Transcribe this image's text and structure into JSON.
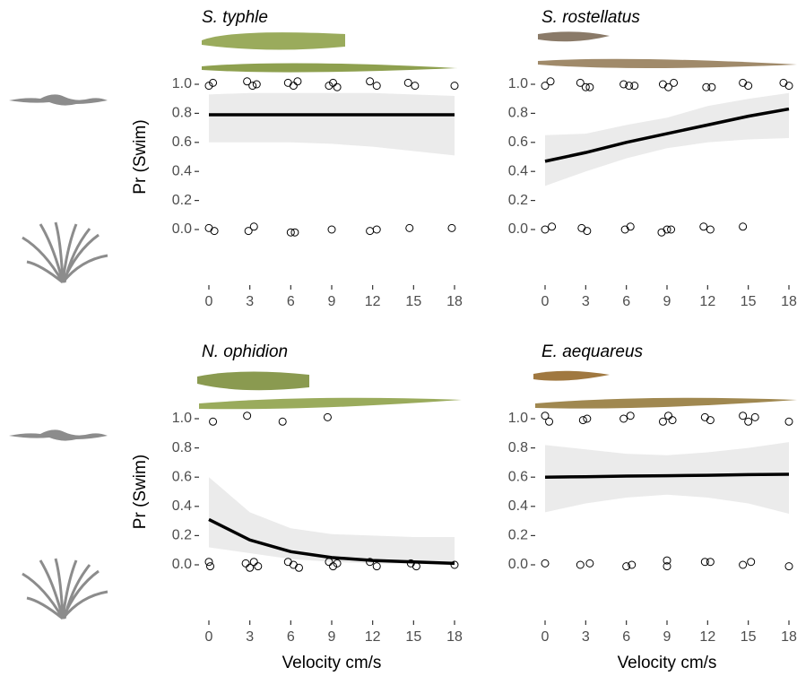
{
  "chart_data": [
    {
      "type": "logistic",
      "title": "S. typhle",
      "ylabel": "Pr (Swim)",
      "xlim": [
        0,
        18
      ],
      "ylim": [
        0,
        1
      ],
      "xticks": [
        0,
        3,
        6,
        9,
        12,
        15,
        18
      ],
      "yticks": [
        {
          "value": 0,
          "label": "0.0"
        },
        {
          "value": 0.2,
          "label": "0.2"
        },
        {
          "value": 0.4,
          "label": "0.4"
        },
        {
          "value": 0.6,
          "label": "0.6"
        },
        {
          "value": 0.8,
          "label": "0.8"
        },
        {
          "value": 1,
          "label": "1.0"
        }
      ],
      "line_color": "#000000",
      "ribbon_color": "#ebebeb",
      "curve": {
        "x": [
          0,
          3,
          6,
          9,
          12,
          15,
          18
        ],
        "fit": [
          0.79,
          0.79,
          0.79,
          0.79,
          0.79,
          0.79,
          0.79
        ],
        "lower": [
          0.6,
          0.6,
          0.6,
          0.59,
          0.57,
          0.54,
          0.51
        ],
        "upper": [
          0.93,
          0.94,
          0.94,
          0.94,
          0.94,
          0.93,
          0.92
        ]
      },
      "points": {
        "x": [
          0,
          0.3,
          2.8,
          3.2,
          3.5,
          5.8,
          6.2,
          6.5,
          8.8,
          9.1,
          9.4,
          11.8,
          12.3,
          14.6,
          15.1,
          18,
          0,
          0.4,
          2.9,
          3.3,
          6,
          6.3,
          9,
          11.8,
          12.3,
          14.7,
          17.8
        ],
        "y": [
          0.99,
          1.01,
          1.02,
          0.99,
          1.0,
          1.01,
          0.99,
          1.02,
          0.99,
          1.01,
          0.98,
          1.02,
          0.99,
          1.01,
          0.99,
          0.99,
          0.01,
          -0.01,
          -0.01,
          0.02,
          -0.02,
          -0.02,
          0.0,
          -0.01,
          0.0,
          0.01,
          0.01
        ]
      }
    },
    {
      "type": "logistic",
      "title": "S. rostellatus",
      "xlim": [
        0,
        18
      ],
      "ylim": [
        0,
        1
      ],
      "xticks": [
        0,
        3,
        6,
        9,
        12,
        15,
        18
      ],
      "yticks": [
        {
          "value": 0,
          "label": "0.0"
        },
        {
          "value": 0.2,
          "label": "0.2"
        },
        {
          "value": 0.4,
          "label": "0.4"
        },
        {
          "value": 0.6,
          "label": "0.6"
        },
        {
          "value": 0.8,
          "label": "0.8"
        },
        {
          "value": 1,
          "label": "1.0"
        }
      ],
      "line_color": "#000000",
      "ribbon_color": "#ebebeb",
      "curve": {
        "x": [
          0,
          3,
          6,
          9,
          12,
          15,
          18
        ],
        "fit": [
          0.47,
          0.53,
          0.6,
          0.66,
          0.72,
          0.78,
          0.83
        ],
        "lower": [
          0.3,
          0.4,
          0.49,
          0.56,
          0.6,
          0.62,
          0.63
        ],
        "upper": [
          0.65,
          0.66,
          0.72,
          0.77,
          0.85,
          0.9,
          0.94
        ]
      },
      "points": {
        "x": [
          0,
          0.4,
          2.6,
          3.0,
          3.3,
          5.8,
          6.2,
          6.6,
          8.7,
          9.1,
          9.5,
          11.9,
          12.3,
          14.6,
          15.0,
          17.6,
          18,
          0,
          0.5,
          2.7,
          3.1,
          5.9,
          6.3,
          8.6,
          9.0,
          9.3,
          11.7,
          12.2,
          14.6
        ],
        "y": [
          0.99,
          1.02,
          1.01,
          0.98,
          0.98,
          1.0,
          0.99,
          0.99,
          1.0,
          0.98,
          1.01,
          0.98,
          0.98,
          1.01,
          0.99,
          1.01,
          0.99,
          0.0,
          0.02,
          0.01,
          -0.01,
          0.0,
          0.02,
          -0.02,
          0.0,
          0.0,
          0.02,
          0.0,
          0.02
        ]
      }
    },
    {
      "type": "logistic",
      "title": "N. ophidion",
      "ylabel": "Pr (Swim)",
      "xlabel": "Velocity cm/s",
      "xlim": [
        0,
        18
      ],
      "ylim": [
        0,
        1
      ],
      "xticks": [
        0,
        3,
        6,
        9,
        12,
        15,
        18
      ],
      "yticks": [
        {
          "value": 0,
          "label": "0.0"
        },
        {
          "value": 0.2,
          "label": "0.2"
        },
        {
          "value": 0.4,
          "label": "0.4"
        },
        {
          "value": 0.6,
          "label": "0.6"
        },
        {
          "value": 0.8,
          "label": "0.8"
        },
        {
          "value": 1,
          "label": "1.0"
        }
      ],
      "line_color": "#000000",
      "ribbon_color": "#ebebeb",
      "curve": {
        "x": [
          0,
          3,
          6,
          9,
          12,
          15,
          18
        ],
        "fit": [
          0.31,
          0.17,
          0.09,
          0.05,
          0.03,
          0.02,
          0.01
        ],
        "lower": [
          0.12,
          0.08,
          0.04,
          0.02,
          0.01,
          0.005,
          0.002
        ],
        "upper": [
          0.6,
          0.36,
          0.25,
          0.21,
          0.2,
          0.19,
          0.19
        ]
      },
      "points": {
        "x": [
          0.3,
          2.8,
          5.4,
          8.7,
          0,
          0.1,
          2.7,
          3.0,
          3.3,
          3.6,
          5.8,
          6.2,
          6.6,
          8.8,
          9.1,
          9.4,
          11.8,
          12.3,
          14.8,
          15.2,
          18
        ],
        "y": [
          0.98,
          1.02,
          0.98,
          1.01,
          0.02,
          -0.01,
          0.01,
          -0.02,
          0.02,
          -0.01,
          0.02,
          0.0,
          -0.02,
          0.02,
          -0.01,
          0.01,
          0.02,
          -0.01,
          0.01,
          -0.01,
          0.0
        ]
      }
    },
    {
      "type": "logistic",
      "title": "E. aequareus",
      "xlabel": "Velocity cm/s",
      "xlim": [
        0,
        18
      ],
      "ylim": [
        0,
        1
      ],
      "xticks": [
        0,
        3,
        6,
        9,
        12,
        15,
        18
      ],
      "yticks": [
        {
          "value": 0,
          "label": "0.0"
        },
        {
          "value": 0.2,
          "label": "0.2"
        },
        {
          "value": 0.4,
          "label": "0.4"
        },
        {
          "value": 0.6,
          "label": "0.6"
        },
        {
          "value": 0.8,
          "label": "0.8"
        },
        {
          "value": 1,
          "label": "1.0"
        }
      ],
      "line_color": "#000000",
      "ribbon_color": "#ebebeb",
      "curve": {
        "x": [
          0,
          3,
          6,
          9,
          12,
          15,
          18
        ],
        "fit": [
          0.6,
          0.603,
          0.607,
          0.61,
          0.613,
          0.617,
          0.62
        ],
        "lower": [
          0.36,
          0.42,
          0.46,
          0.48,
          0.46,
          0.42,
          0.35
        ],
        "upper": [
          0.82,
          0.79,
          0.76,
          0.75,
          0.77,
          0.8,
          0.84
        ]
      },
      "points": {
        "x": [
          0,
          0.3,
          2.8,
          3.1,
          5.8,
          6.3,
          8.7,
          9.1,
          9.4,
          11.8,
          12.2,
          14.6,
          15.0,
          15.5,
          18,
          0,
          2.6,
          3.3,
          6.0,
          6.4,
          9.0,
          9.0,
          11.8,
          12.2,
          14.6,
          15.2,
          18
        ],
        "y": [
          1.02,
          0.98,
          0.99,
          1.0,
          1.0,
          1.02,
          0.98,
          1.02,
          0.99,
          1.01,
          0.99,
          1.02,
          0.98,
          1.01,
          0.98,
          0.01,
          0.0,
          0.01,
          -0.01,
          0.0,
          0.03,
          -0.01,
          0.02,
          0.02,
          0.0,
          0.02,
          -0.01
        ]
      }
    }
  ]
}
